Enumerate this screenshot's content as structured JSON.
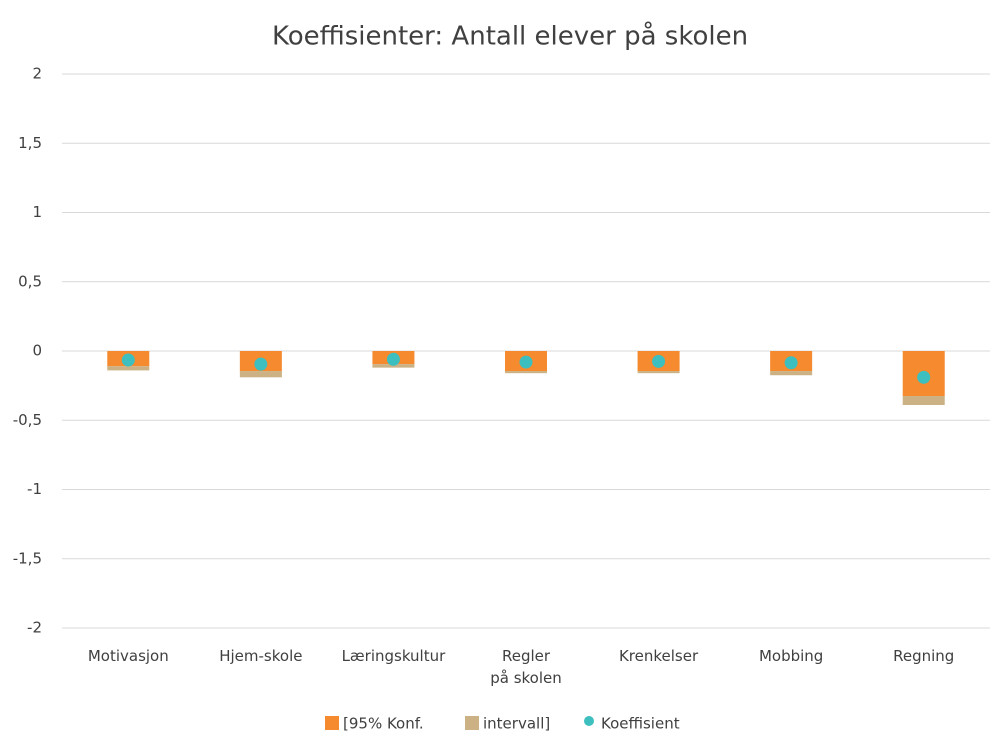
{
  "chart_data": {
    "type": "stacked_bar_with_points",
    "title": "Koeffisienter: Antall elever på skolen",
    "categories": [
      "Motivasjon",
      "Hjem-skole",
      "Læringskultur",
      "Regler\npå skolen",
      "Krenkelser",
      "Mobbing",
      "Regning"
    ],
    "series": [
      {
        "name": "[95% Konf.",
        "color": "#f58a2e",
        "values": [
          -0.11,
          -0.145,
          -0.095,
          -0.145,
          -0.145,
          -0.145,
          -0.325
        ]
      },
      {
        "name": "intervall]",
        "color": "#cbb183",
        "values": [
          -0.03,
          -0.045,
          -0.025,
          -0.015,
          -0.015,
          -0.03,
          -0.065
        ]
      },
      {
        "name": "Koeffisient",
        "color": "#3dbfbf",
        "type": "scatter",
        "values": [
          -0.065,
          -0.095,
          -0.06,
          -0.08,
          -0.075,
          -0.085,
          -0.19
        ]
      }
    ],
    "ylim": [
      -2,
      2
    ],
    "yticks": [
      -2,
      {
        "value": -1.5,
        "label": "-1,5"
      },
      -1,
      {
        "value": -0.5,
        "label": "-0,5"
      },
      0,
      {
        "value": 0.5,
        "label": "0,5"
      },
      1,
      {
        "value": 1.5,
        "label": "1,5"
      },
      2
    ],
    "grid": true,
    "legend": "bottom"
  }
}
